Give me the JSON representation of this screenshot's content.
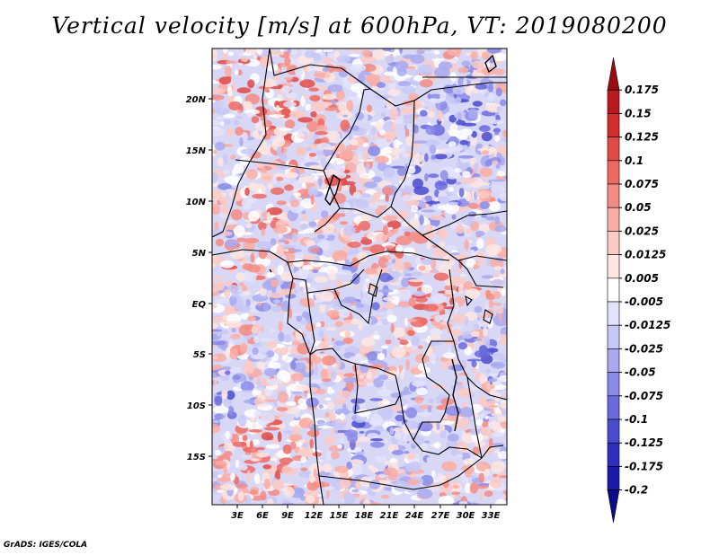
{
  "title": "Vertical velocity [m/s] at 600hPa, VT: 2019080200",
  "credit": "GrADS: IGES/COLA",
  "map": {
    "lat_ticks": [
      "20N",
      "15N",
      "10N",
      "5N",
      "EQ",
      "5S",
      "10S",
      "15S"
    ],
    "lon_ticks": [
      "3E",
      "6E",
      "9E",
      "12E",
      "15E",
      "18E",
      "21E",
      "24E",
      "27E",
      "30E",
      "33E"
    ]
  },
  "colorbar": {
    "labels": [
      "0.175",
      "0.15",
      "0.125",
      "0.1",
      "0.075",
      "0.05",
      "0.025",
      "0.0125",
      "0.005",
      "-0.005",
      "-0.0125",
      "-0.025",
      "-0.05",
      "-0.075",
      "-0.1",
      "-0.125",
      "-0.175",
      "-0.2"
    ],
    "colors": [
      "#9a0d12",
      "#b81a1e",
      "#d12c2e",
      "#e04a47",
      "#ec6a63",
      "#f58c84",
      "#f9ada5",
      "#fccac4",
      "#fee6e2",
      "#ffffff",
      "#e3e3fb",
      "#c8c8f6",
      "#a9a9f0",
      "#8a8ae8",
      "#6a6ade",
      "#4b4bcf",
      "#2f2fbf",
      "#1a1aa8",
      "#0b0b8c"
    ]
  }
}
